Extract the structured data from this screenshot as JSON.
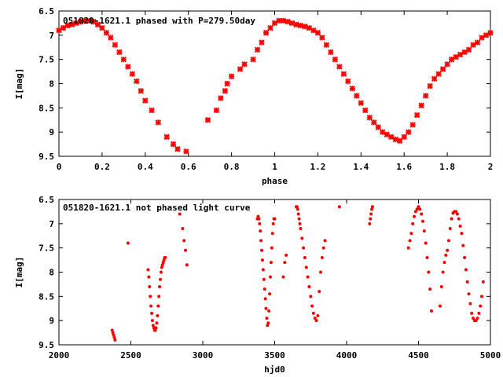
{
  "chart_data": [
    {
      "type": "scatter",
      "title": "051820-1621.1 phased with P=279.50day",
      "xlabel": "phase",
      "ylabel": "I[mag]",
      "xlim": [
        0,
        2
      ],
      "ylim": [
        9.5,
        6.5
      ],
      "y_inverted": true,
      "xticks": [
        "0",
        "0.2",
        "0.4",
        "0.6",
        "0.8",
        "1",
        "1.2",
        "1.4",
        "1.6",
        "1.8",
        "2"
      ],
      "yticks": [
        "6.5",
        "7",
        "7.5",
        "8",
        "8.5",
        "9",
        "9.5"
      ],
      "series": [
        {
          "color": "#ff0000",
          "marker": "cross",
          "x": [
            0.0,
            0.02,
            0.04,
            0.06,
            0.08,
            0.1,
            0.12,
            0.14,
            0.16,
            0.18,
            0.2,
            0.22,
            0.24,
            0.26,
            0.28,
            0.3,
            0.32,
            0.34,
            0.36,
            0.38,
            0.4,
            0.43,
            0.46,
            0.5,
            0.53,
            0.55,
            0.59,
            0.69,
            0.73,
            0.75,
            0.77,
            0.78,
            0.8,
            0.84,
            0.86,
            0.9,
            0.92,
            0.94,
            0.96,
            0.98,
            1.0,
            1.02,
            1.04,
            1.06,
            1.08,
            1.1,
            1.12,
            1.14,
            1.16,
            1.18,
            1.2,
            1.22,
            1.24,
            1.26,
            1.28,
            1.3,
            1.32,
            1.34,
            1.36,
            1.38,
            1.4,
            1.42,
            1.44,
            1.46,
            1.48,
            1.5,
            1.52,
            1.54,
            1.56,
            1.58,
            1.6,
            1.62,
            1.64,
            1.66,
            1.68,
            1.7,
            1.72,
            1.74,
            1.76,
            1.78,
            1.8,
            1.82,
            1.84,
            1.86,
            1.88,
            1.9,
            1.92,
            1.94,
            1.96,
            1.98,
            2.0
          ],
          "y": [
            6.9,
            6.85,
            6.8,
            6.78,
            6.75,
            6.72,
            6.7,
            6.7,
            6.72,
            6.78,
            6.85,
            6.95,
            7.05,
            7.2,
            7.35,
            7.5,
            7.65,
            7.8,
            7.95,
            8.15,
            8.35,
            8.55,
            8.8,
            9.1,
            9.25,
            9.35,
            9.4,
            8.75,
            8.55,
            8.3,
            8.15,
            8.0,
            7.85,
            7.7,
            7.6,
            7.5,
            7.3,
            7.15,
            6.95,
            6.85,
            6.75,
            6.7,
            6.7,
            6.72,
            6.75,
            6.78,
            6.8,
            6.82,
            6.85,
            6.9,
            6.95,
            7.05,
            7.2,
            7.35,
            7.5,
            7.65,
            7.8,
            7.95,
            8.1,
            8.25,
            8.4,
            8.55,
            8.7,
            8.8,
            8.9,
            9.0,
            9.05,
            9.1,
            9.15,
            9.18,
            9.1,
            9.0,
            8.85,
            8.65,
            8.45,
            8.25,
            8.05,
            7.9,
            7.8,
            7.7,
            7.6,
            7.5,
            7.45,
            7.4,
            7.35,
            7.3,
            7.2,
            7.15,
            7.05,
            7.0,
            6.95
          ]
        }
      ]
    },
    {
      "type": "scatter",
      "title": "051820-1621.1 not phased light curve",
      "xlabel": "hjd0",
      "ylabel": "I[mag]",
      "xlim": [
        2000,
        5000
      ],
      "ylim": [
        9.5,
        6.5
      ],
      "y_inverted": true,
      "xticks": [
        "2000",
        "2500",
        "3000",
        "3500",
        "4000",
        "4500",
        "5000"
      ],
      "yticks": [
        "6.5",
        "7",
        "7.5",
        "8",
        "8.5",
        "9",
        "9.5"
      ],
      "series": [
        {
          "color": "#ff0000",
          "marker": "dot",
          "x": [
            2370,
            2375,
            2380,
            2385,
            2390,
            2480,
            2620,
            2625,
            2630,
            2635,
            2640,
            2645,
            2650,
            2655,
            2660,
            2665,
            2670,
            2675,
            2680,
            2685,
            2690,
            2695,
            2700,
            2705,
            2710,
            2715,
            2720,
            2725,
            2730,
            2735,
            2740,
            2840,
            2860,
            2870,
            2880,
            2890,
            3380,
            3385,
            3390,
            3395,
            3400,
            3405,
            3410,
            3415,
            3420,
            3425,
            3430,
            3435,
            3440,
            3445,
            3450,
            3455,
            3460,
            3465,
            3470,
            3475,
            3480,
            3485,
            3490,
            3495,
            3500,
            3560,
            3570,
            3580,
            3650,
            3655,
            3660,
            3665,
            3670,
            3675,
            3680,
            3690,
            3700,
            3710,
            3720,
            3730,
            3740,
            3750,
            3760,
            3770,
            3780,
            3790,
            3800,
            3810,
            3820,
            3830,
            3840,
            3850,
            3950,
            4160,
            4165,
            4170,
            4175,
            4180,
            4430,
            4440,
            4450,
            4460,
            4470,
            4480,
            4490,
            4500,
            4510,
            4520,
            4530,
            4540,
            4550,
            4560,
            4570,
            4580,
            4590,
            4650,
            4660,
            4670,
            4680,
            4690,
            4700,
            4710,
            4720,
            4730,
            4740,
            4750,
            4760,
            4770,
            4780,
            4790,
            4800,
            4810,
            4820,
            4830,
            4840,
            4850,
            4860,
            4870,
            4880,
            4890,
            4900,
            4910,
            4920,
            4930,
            4940,
            4950
          ],
          "y": [
            9.2,
            9.25,
            9.3,
            9.35,
            9.4,
            7.4,
            7.95,
            8.1,
            8.3,
            8.5,
            8.7,
            8.85,
            9.0,
            9.1,
            9.15,
            9.2,
            9.2,
            9.15,
            9.05,
            8.9,
            8.7,
            8.5,
            8.3,
            8.15,
            8.0,
            7.9,
            7.85,
            7.8,
            7.75,
            7.7,
            7.7,
            6.8,
            7.1,
            7.35,
            7.55,
            7.85,
            6.9,
            6.85,
            6.9,
            7.0,
            7.15,
            7.35,
            7.55,
            7.75,
            7.95,
            8.15,
            8.35,
            8.55,
            8.75,
            8.95,
            9.1,
            9.05,
            8.8,
            8.45,
            8.1,
            7.8,
            7.5,
            7.2,
            7.0,
            6.9,
            6.9,
            8.1,
            7.8,
            7.65,
            6.65,
            6.65,
            6.7,
            6.8,
            6.9,
            7.0,
            7.1,
            7.3,
            7.5,
            7.7,
            7.9,
            8.1,
            8.3,
            8.5,
            8.7,
            8.85,
            8.95,
            9.0,
            8.9,
            8.4,
            8.0,
            7.7,
            7.5,
            7.35,
            6.65,
            7.0,
            6.9,
            6.8,
            6.7,
            6.65,
            7.5,
            7.35,
            7.2,
            7.0,
            6.85,
            6.75,
            6.7,
            6.65,
            6.7,
            6.8,
            6.95,
            7.15,
            7.4,
            7.7,
            8.0,
            8.35,
            8.8,
            8.7,
            8.3,
            8.0,
            7.8,
            7.65,
            7.55,
            7.35,
            7.1,
            6.9,
            6.78,
            6.75,
            6.75,
            6.8,
            6.9,
            7.05,
            7.2,
            7.45,
            7.7,
            7.95,
            8.2,
            8.45,
            8.65,
            8.85,
            8.95,
            9.0,
            9.0,
            8.95,
            8.85,
            8.7,
            8.5,
            8.2
          ]
        }
      ]
    }
  ]
}
